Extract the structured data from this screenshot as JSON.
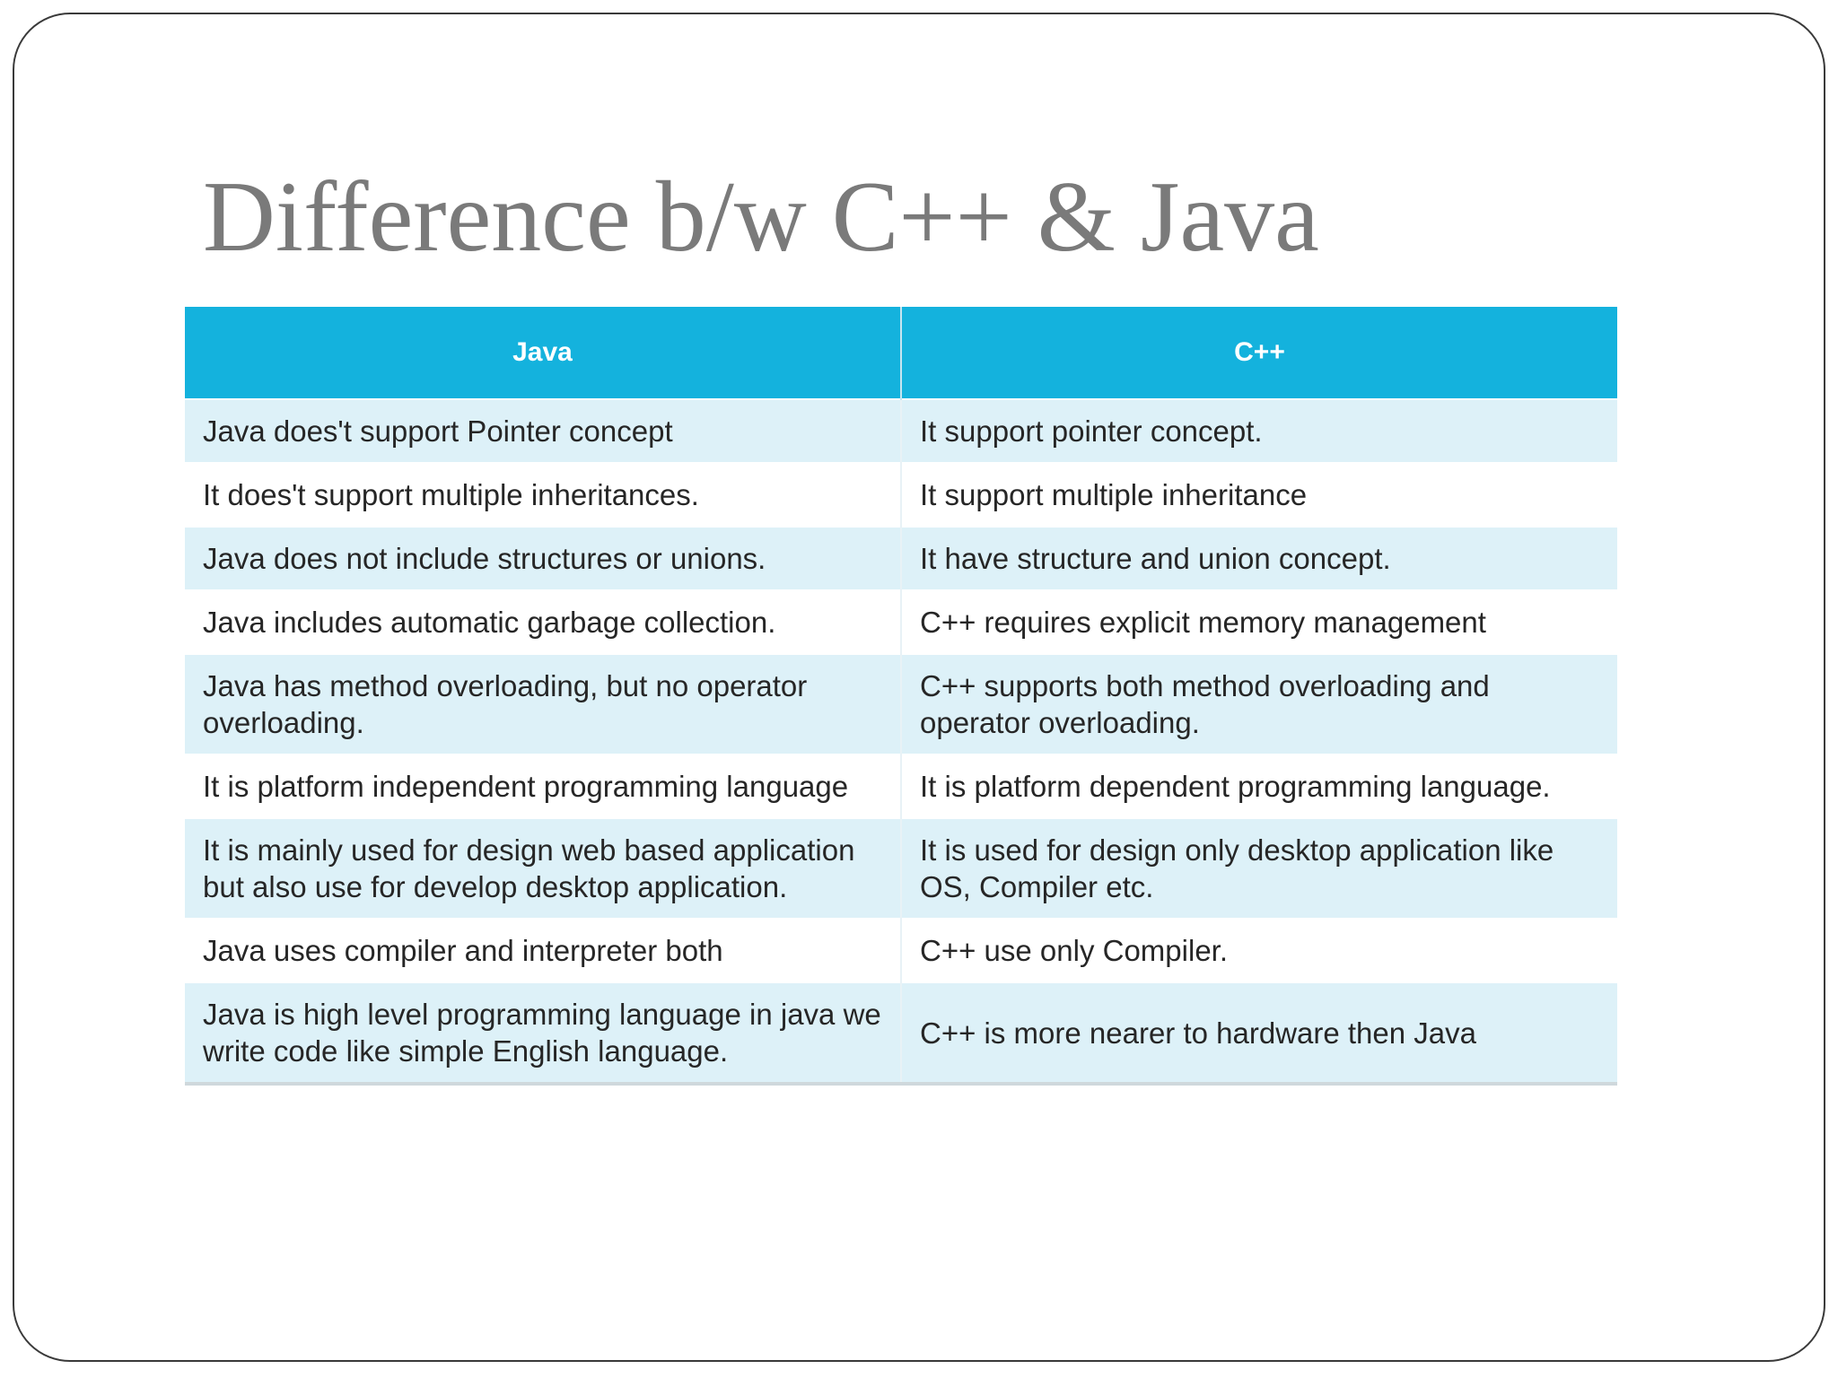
{
  "slide": {
    "title": "Difference b/w C++ & Java"
  },
  "table": {
    "headers": [
      "Java",
      "C++"
    ],
    "rows": [
      [
        "Java does't support Pointer concept",
        "It support pointer concept."
      ],
      [
        "It does't support multiple inheritances.",
        "It support multiple inheritance"
      ],
      [
        "Java does not include structures or unions.",
        "It have structure and union concept."
      ],
      [
        "Java includes automatic garbage collection.",
        "C++ requires explicit memory management"
      ],
      [
        "Java has method overloading, but no operator overloading.",
        "C++ supports both method overloading and operator overloading."
      ],
      [
        "It is platform independent programming language",
        "It is platform dependent programming language."
      ],
      [
        "It is mainly used for design web based application but also use for develop desktop application.",
        "It is used for design only desktop application like OS, Compiler etc."
      ],
      [
        "Java uses compiler and interpreter both",
        "C++ use only Compiler."
      ],
      [
        "Java is high level programming language in java we write code like simple English language.",
        "C++ is more nearer to hardware then Java"
      ]
    ]
  },
  "colors": {
    "header_bg": "#14b2dd",
    "row_alt_bg": "#ddf1f8",
    "title_color": "#7a7a7a"
  }
}
